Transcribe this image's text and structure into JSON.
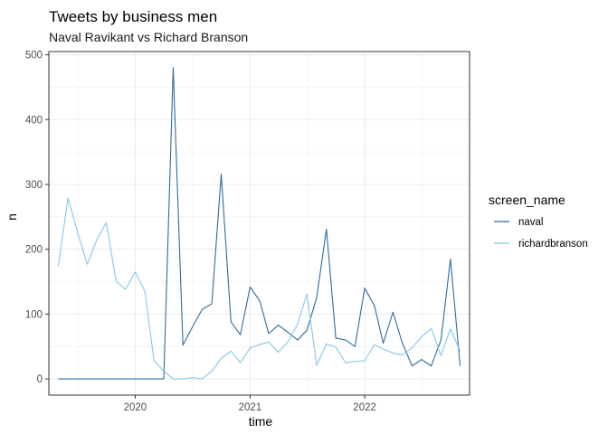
{
  "colors": {
    "naval": "#336a98",
    "richardbranson": "#85c7e8",
    "grid": "#ebebeb",
    "panel_border": "#333333"
  },
  "chart_data": {
    "type": "line",
    "title": "Tweets by business men",
    "subtitle": "Naval Ravikant vs Richard Branson",
    "xlabel": "time",
    "ylabel": "n",
    "x_ticks": [
      "2020",
      "2021",
      "2022"
    ],
    "x_tick_values": [
      "2020-01-01",
      "2021-01-01",
      "2022-01-01"
    ],
    "y_ticks": [
      0,
      100,
      200,
      300,
      400,
      500
    ],
    "xlim": [
      "2019-04-01",
      "2022-12-01"
    ],
    "ylim": [
      -25,
      505
    ],
    "grid": true,
    "legend": {
      "title": "screen_name",
      "position": "right"
    },
    "x": [
      "2019-05-01",
      "2019-06-01",
      "2019-07-01",
      "2019-08-01",
      "2019-09-01",
      "2019-10-01",
      "2019-11-01",
      "2019-12-01",
      "2020-01-01",
      "2020-02-01",
      "2020-03-01",
      "2020-04-01",
      "2020-05-01",
      "2020-06-01",
      "2020-07-01",
      "2020-08-01",
      "2020-09-01",
      "2020-10-01",
      "2020-11-01",
      "2020-12-01",
      "2021-01-01",
      "2021-02-01",
      "2021-03-01",
      "2021-04-01",
      "2021-05-01",
      "2021-06-01",
      "2021-07-01",
      "2021-08-01",
      "2021-09-01",
      "2021-10-01",
      "2021-11-01",
      "2021-12-01",
      "2022-01-01",
      "2022-02-01",
      "2022-03-01",
      "2022-04-01",
      "2022-05-01",
      "2022-06-01",
      "2022-07-01",
      "2022-08-01",
      "2022-09-01",
      "2022-10-01",
      "2022-11-01"
    ],
    "series": [
      {
        "name": "naval",
        "color": "#336a98",
        "values": [
          0,
          0,
          0,
          0,
          0,
          0,
          0,
          0,
          0,
          0,
          0,
          0,
          480,
          52,
          80,
          107,
          116,
          316,
          88,
          68,
          142,
          120,
          70,
          83,
          72,
          60,
          75,
          125,
          231,
          63,
          60,
          50,
          140,
          113,
          55,
          103,
          55,
          20,
          30,
          20,
          60,
          185,
          20
        ]
      },
      {
        "name": "richardbranson",
        "color": "#85c7e8",
        "values": [
          174,
          279,
          227,
          177,
          215,
          241,
          151,
          138,
          165,
          135,
          28,
          12,
          0,
          0,
          2,
          0,
          12,
          32,
          43,
          25,
          48,
          53,
          57,
          41,
          57,
          84,
          131,
          21,
          54,
          49,
          25,
          27,
          28,
          53,
          46,
          40,
          37,
          48,
          65,
          78,
          36,
          77,
          43
        ]
      }
    ]
  }
}
